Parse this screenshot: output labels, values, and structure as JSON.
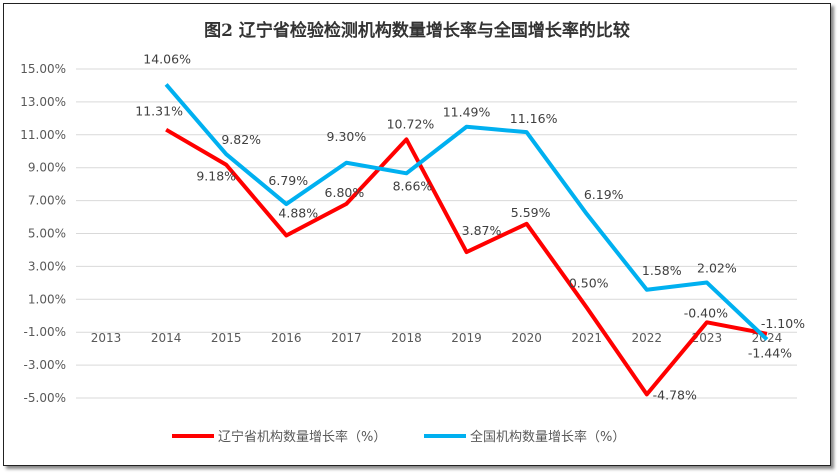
{
  "chart_data": {
    "type": "line",
    "title": "图2 辽宁省检验检测机构数量增长率与全国增长率的比较",
    "categories": [
      "2013",
      "2014",
      "2015",
      "2016",
      "2017",
      "2018",
      "2019",
      "2020",
      "2021",
      "2022",
      "2023",
      "2024"
    ],
    "ylim": [
      -5,
      15
    ],
    "yticks": [
      "-5.00%",
      "-3.00%",
      "-1.00%",
      "1.00%",
      "3.00%",
      "5.00%",
      "7.00%",
      "9.00%",
      "11.00%",
      "13.00%",
      "15.00%"
    ],
    "grid": true,
    "legend": "bottom",
    "series": [
      {
        "name": "辽宁省机构数量增长率（%）",
        "color": "#FF0000",
        "values": [
          null,
          11.31,
          9.18,
          4.88,
          6.8,
          10.72,
          3.87,
          5.59,
          0.5,
          -4.78,
          -0.4,
          -1.1
        ],
        "labels": [
          "",
          "11.31%",
          "9.18%",
          "4.88%",
          "6.80%",
          "10.72%",
          "3.87%",
          "5.59%",
          "0.50%",
          "-4.78%",
          "-0.40%",
          "-1.10%"
        ]
      },
      {
        "name": "全国机构数量增长率（%）",
        "color": "#00B0F0",
        "values": [
          null,
          14.06,
          9.82,
          6.79,
          9.3,
          8.66,
          11.49,
          11.16,
          6.19,
          1.58,
          2.02,
          -1.44
        ],
        "labels": [
          "",
          "14.06%",
          "9.82%",
          "6.79%",
          "9.30%",
          "8.66%",
          "11.49%",
          "11.16%",
          "6.19%",
          "1.58%",
          "2.02%",
          "-1.44%"
        ]
      }
    ]
  }
}
